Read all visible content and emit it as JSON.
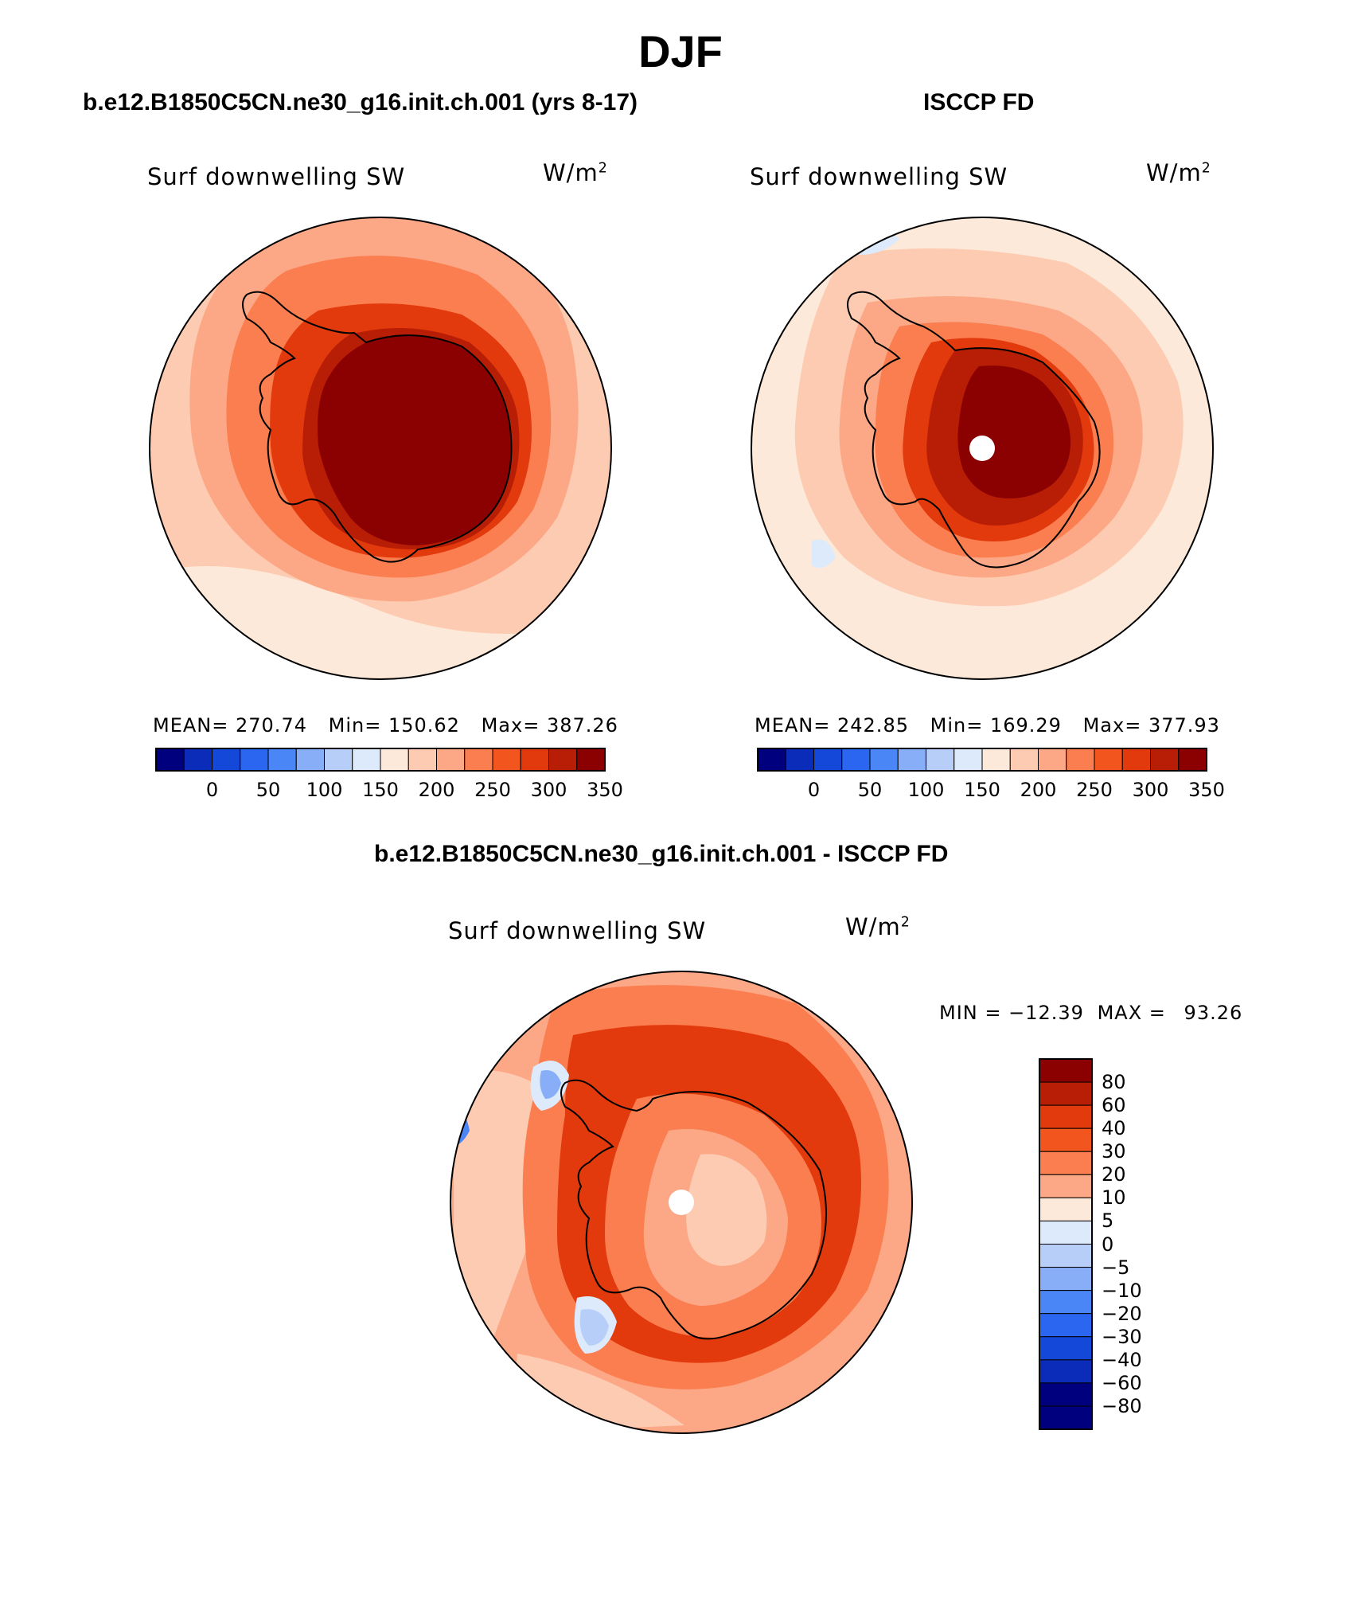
{
  "figure": {
    "title": "DJF",
    "variable": "Surf downwelling SW",
    "units_base": "W/m",
    "units_exp": "2"
  },
  "panels": [
    {
      "title": "b.e12.B1850C5CN.ne30_g16.init.ch.001 (yrs 8-17)",
      "stats": {
        "mean_label": "MEAN=",
        "mean": "270.74",
        "min_label": "Min=",
        "min": "150.62",
        "max_label": "Max=",
        "max": "387.26"
      }
    },
    {
      "title": "ISCCP FD",
      "stats": {
        "mean_label": "MEAN=",
        "mean": "242.85",
        "min_label": "Min=",
        "min": "169.29",
        "max_label": "Max=",
        "max": "377.93"
      }
    },
    {
      "title": "b.e12.B1850C5CN.ne30_g16.init.ch.001 - ISCCP FD",
      "stats": {
        "min_label": "MIN =",
        "min": "−12.39",
        "max_label": "MAX =",
        "max": "93.26"
      }
    }
  ],
  "colorbar_abs": {
    "colors": [
      "#00007f",
      "#0a2cb8",
      "#1448d8",
      "#2a66f0",
      "#4a86f5",
      "#87aef7",
      "#b7cff8",
      "#ddeafb",
      "#fde9d9",
      "#fdcbb1",
      "#fca886",
      "#fb7e50",
      "#f3551f",
      "#e23a0c",
      "#b81e06",
      "#8b0000"
    ],
    "ticks": [
      "0",
      "50",
      "100",
      "150",
      "200",
      "250",
      "300",
      "350"
    ]
  },
  "colorbar_diff": {
    "colors": [
      "#8b0000",
      "#b81e06",
      "#e23a0c",
      "#f3551f",
      "#fb7e50",
      "#fca886",
      "#fde9d9",
      "#ddeafb",
      "#b7cff8",
      "#87aef7",
      "#4a86f5",
      "#2a66f0",
      "#1448d8",
      "#0a2cb8",
      "#00007f",
      "#00007f"
    ],
    "ticks": [
      "80",
      "60",
      "40",
      "30",
      "20",
      "10",
      "5",
      "0",
      "−5",
      "−10",
      "−20",
      "−30",
      "−40",
      "−60",
      "−80"
    ]
  },
  "map_colors": {
    "ocean_light": "#fde9d9",
    "ocean_mid": "#fdcbb1",
    "orange1": "#fca886",
    "orange2": "#fb7e50",
    "orange3": "#f3551f",
    "red1": "#e23a0c",
    "red2": "#b81e06",
    "dark_red": "#8b0000",
    "blue_light": "#ddeafb",
    "blue_mid": "#b7cff8",
    "blue_deep": "#87aef7"
  }
}
